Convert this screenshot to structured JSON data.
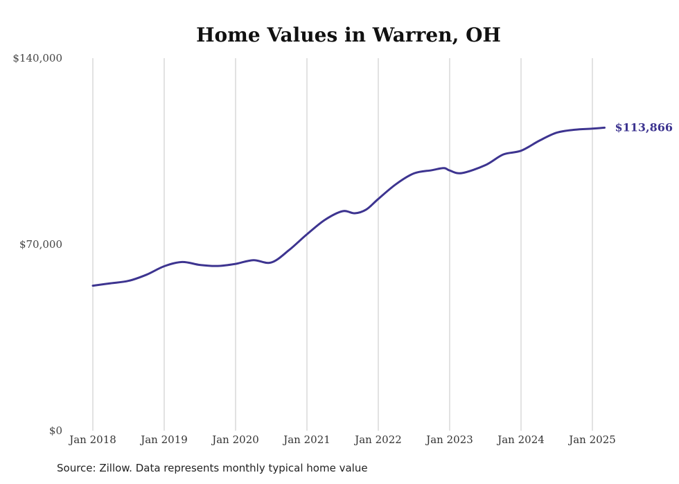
{
  "chart_data": {
    "type": "line",
    "title": "Home Values in Warren, OH",
    "xlabel": "",
    "ylabel": "",
    "ylim": [
      0,
      140000
    ],
    "yticks": [
      {
        "value": 0,
        "label": "$0"
      },
      {
        "value": 70000,
        "label": "$70,000"
      },
      {
        "value": 140000,
        "label": "$140,000"
      }
    ],
    "xticks": [
      {
        "value": 2018,
        "label": "Jan 2018"
      },
      {
        "value": 2019,
        "label": "Jan 2019"
      },
      {
        "value": 2020,
        "label": "Jan 2020"
      },
      {
        "value": 2021,
        "label": "Jan 2021"
      },
      {
        "value": 2022,
        "label": "Jan 2022"
      },
      {
        "value": 2023,
        "label": "Jan 2023"
      },
      {
        "value": 2024,
        "label": "Jan 2024"
      },
      {
        "value": 2025,
        "label": "Jan 2025"
      }
    ],
    "xlim": [
      2018,
      2025.2
    ],
    "grid": "vertical",
    "line_color": "#3d3490",
    "series": [
      {
        "x": [
          2018.0,
          2018.25,
          2018.5,
          2018.75,
          2019.0,
          2019.25,
          2019.5,
          2019.75,
          2020.0,
          2020.25,
          2020.5,
          2020.75,
          2021.0,
          2021.25,
          2021.5,
          2021.67,
          2021.83,
          2022.0,
          2022.25,
          2022.5,
          2022.75,
          2022.92,
          2023.0,
          2023.17,
          2023.5,
          2023.75,
          2024.0,
          2024.25,
          2024.5,
          2024.75,
          2025.0,
          2025.17
        ],
        "y": [
          54500,
          55400,
          56300,
          58600,
          61800,
          63400,
          62300,
          61900,
          62700,
          64100,
          63200,
          67900,
          73800,
          79200,
          82500,
          81700,
          83100,
          87100,
          92700,
          96700,
          97900,
          98700,
          97800,
          96800,
          99800,
          103800,
          105200,
          108900,
          112000,
          113100,
          113500,
          113866
        ]
      }
    ],
    "end_label": "$113,866"
  },
  "source": "Source: Zillow. Data represents monthly typical home value"
}
